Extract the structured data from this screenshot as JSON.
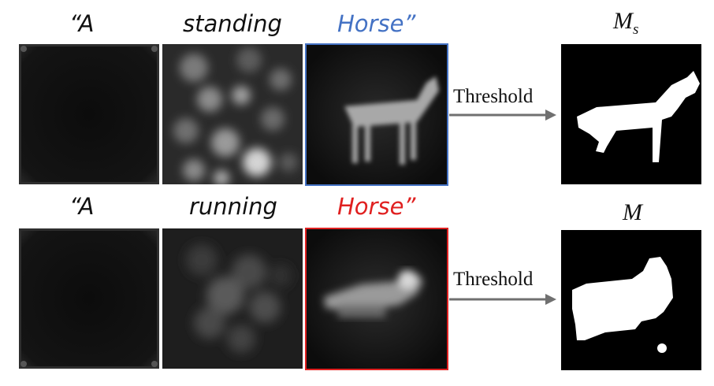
{
  "rows": [
    {
      "quote_open": "“A",
      "verb": "standing",
      "noun": "Horse”",
      "noun_color": "#4472c4",
      "arrow_label": "Threshold",
      "mask_symbol": "M",
      "mask_subscript": "s"
    },
    {
      "quote_open": "“A",
      "verb": "running",
      "noun": "Horse”",
      "noun_color": "#e02020",
      "arrow_label": "Threshold",
      "mask_symbol": "M",
      "mask_subscript": ""
    }
  ],
  "colors": {
    "arrow": "#707070",
    "frame_blue": "#4472c4",
    "frame_red": "#e02020"
  }
}
